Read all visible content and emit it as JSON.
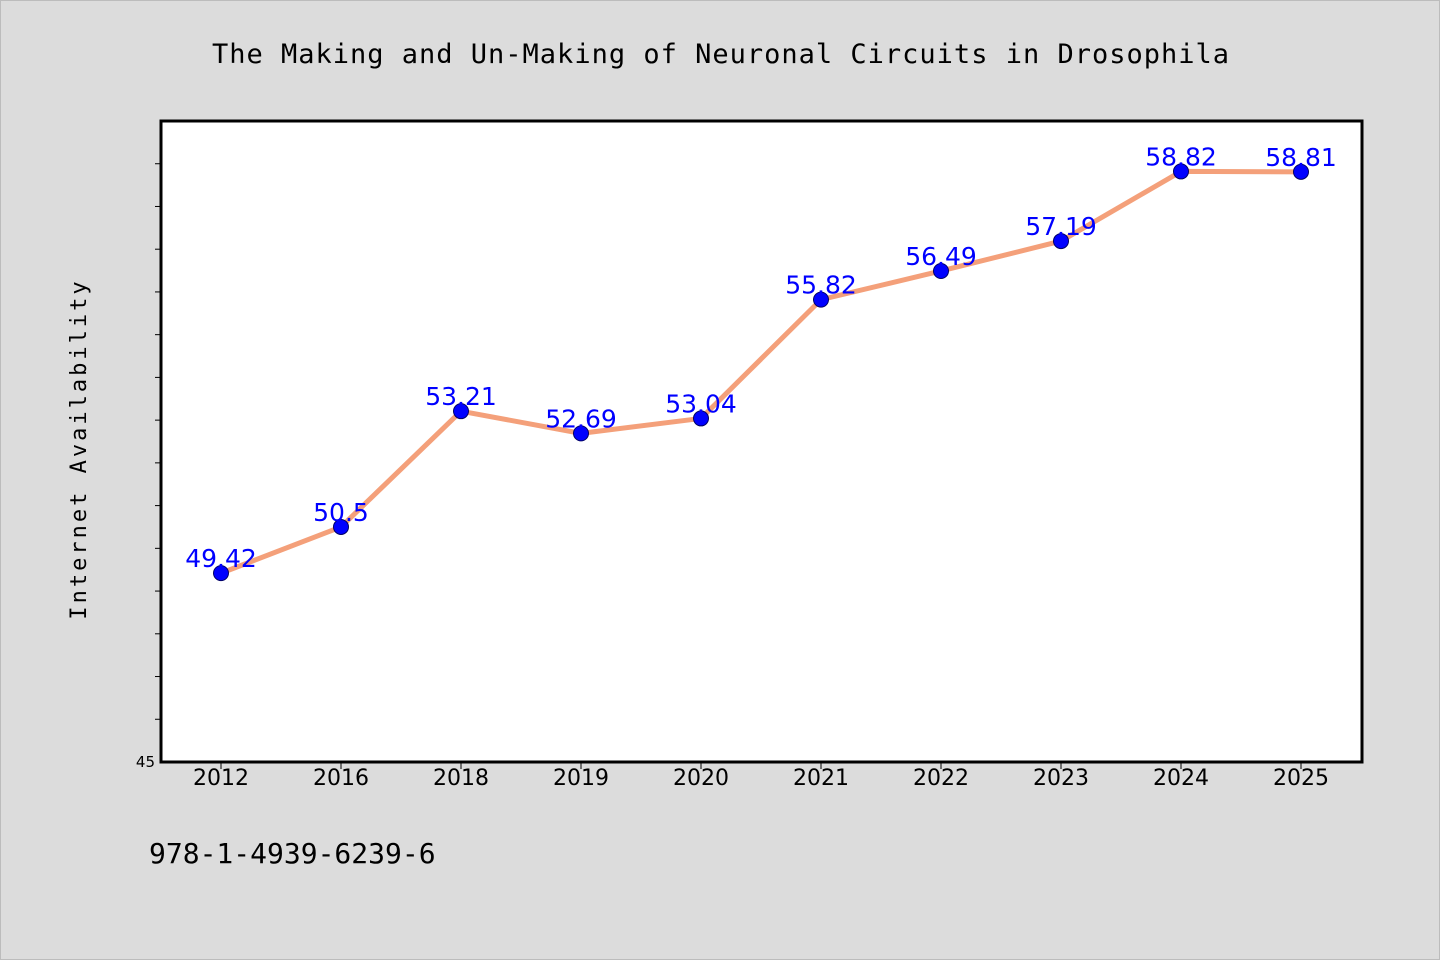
{
  "chart_data": {
    "type": "line",
    "title": "The Making and Un-Making of Neuronal Circuits in Drosophila",
    "ylabel": "Internet Availability",
    "xlabel": "",
    "categories": [
      "2012",
      "2016",
      "2018",
      "2019",
      "2020",
      "2021",
      "2022",
      "2023",
      "2024",
      "2025"
    ],
    "series": [
      {
        "values": [
          49.42,
          50.5,
          53.21,
          52.69,
          53.04,
          55.82,
          56.49,
          57.19,
          58.82,
          58.81
        ],
        "labels": [
          "49.42",
          "50.5",
          "53.21",
          "52.69",
          "53.04",
          "55.82",
          "56.49",
          "57.19",
          "58.82",
          "58.81"
        ]
      }
    ],
    "ylim": [
      45,
      60
    ],
    "ytick_labels": [
      "45"
    ],
    "grid": false,
    "colors": {
      "line": "#f4a07a",
      "marker": "#0000ff",
      "data_label": "#0000ff",
      "plot_background": "#ffffff",
      "page_background": "#dcdcdc"
    }
  },
  "footnote": "978-1-4939-6239-6"
}
